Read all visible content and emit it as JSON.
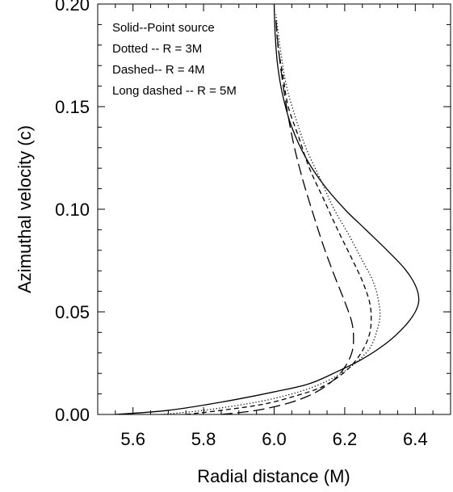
{
  "chart_data": {
    "type": "line",
    "title": "",
    "xlabel": "Radial distance (M)",
    "ylabel": "Azimuthal velocity (c)",
    "xlim": [
      5.5,
      6.5
    ],
    "ylim": [
      0.0,
      0.2
    ],
    "x_ticks": [
      "5.6",
      "5.8",
      "6.0",
      "6.2",
      "6.4"
    ],
    "y_ticks": [
      "0.00",
      "0.05",
      "0.10",
      "0.15",
      "0.20"
    ],
    "grid": false,
    "legend_position": "top-left",
    "legend": [
      "Solid--Point source",
      "Dotted -- R = 3M",
      "Dashed-- R = 4M",
      "Long dashed -- R = 5M"
    ],
    "series": [
      {
        "style": "solid",
        "points": [
          [
            5.55,
            0.0
          ],
          [
            5.7,
            0.002
          ],
          [
            5.85,
            0.006
          ],
          [
            6.0,
            0.011
          ],
          [
            6.1,
            0.015
          ],
          [
            6.18,
            0.021
          ],
          [
            6.25,
            0.027
          ],
          [
            6.32,
            0.035
          ],
          [
            6.37,
            0.043
          ],
          [
            6.4,
            0.05
          ],
          [
            6.41,
            0.056
          ],
          [
            6.4,
            0.063
          ],
          [
            6.37,
            0.071
          ],
          [
            6.32,
            0.08
          ],
          [
            6.26,
            0.09
          ],
          [
            6.2,
            0.1
          ],
          [
            6.14,
            0.112
          ],
          [
            6.09,
            0.125
          ],
          [
            6.05,
            0.14
          ],
          [
            6.025,
            0.155
          ],
          [
            6.01,
            0.17
          ],
          [
            6.003,
            0.185
          ],
          [
            6.0,
            0.2
          ]
        ]
      },
      {
        "style": "dotted",
        "points": [
          [
            5.68,
            0.0
          ],
          [
            5.8,
            0.002
          ],
          [
            5.95,
            0.006
          ],
          [
            6.05,
            0.01
          ],
          [
            6.12,
            0.014
          ],
          [
            6.18,
            0.019
          ],
          [
            6.23,
            0.025
          ],
          [
            6.27,
            0.032
          ],
          [
            6.29,
            0.04
          ],
          [
            6.3,
            0.048
          ],
          [
            6.295,
            0.056
          ],
          [
            6.28,
            0.065
          ],
          [
            6.25,
            0.075
          ],
          [
            6.21,
            0.088
          ],
          [
            6.17,
            0.1
          ],
          [
            6.13,
            0.115
          ],
          [
            6.09,
            0.13
          ],
          [
            6.06,
            0.145
          ],
          [
            6.035,
            0.16
          ],
          [
            6.02,
            0.175
          ],
          [
            6.01,
            0.188
          ],
          [
            6.005,
            0.195
          ]
        ]
      },
      {
        "style": "dashed",
        "points": [
          [
            5.75,
            0.0
          ],
          [
            5.85,
            0.002
          ],
          [
            5.97,
            0.005
          ],
          [
            6.06,
            0.009
          ],
          [
            6.13,
            0.013
          ],
          [
            6.18,
            0.018
          ],
          [
            6.22,
            0.024
          ],
          [
            6.25,
            0.031
          ],
          [
            6.27,
            0.039
          ],
          [
            6.275,
            0.047
          ],
          [
            6.27,
            0.055
          ],
          [
            6.25,
            0.065
          ],
          [
            6.22,
            0.076
          ],
          [
            6.18,
            0.09
          ],
          [
            6.14,
            0.105
          ],
          [
            6.1,
            0.12
          ],
          [
            6.07,
            0.135
          ],
          [
            6.04,
            0.15
          ],
          [
            6.025,
            0.165
          ],
          [
            6.012,
            0.178
          ],
          [
            6.006,
            0.19
          ]
        ]
      },
      {
        "style": "longdash",
        "points": [
          [
            5.85,
            0.0
          ],
          [
            5.95,
            0.002
          ],
          [
            6.05,
            0.006
          ],
          [
            6.12,
            0.011
          ],
          [
            6.17,
            0.017
          ],
          [
            6.2,
            0.023
          ],
          [
            6.22,
            0.03
          ],
          [
            6.225,
            0.037
          ],
          [
            6.22,
            0.045
          ],
          [
            6.2,
            0.055
          ],
          [
            6.17,
            0.068
          ],
          [
            6.14,
            0.082
          ],
          [
            6.11,
            0.098
          ],
          [
            6.08,
            0.115
          ],
          [
            6.055,
            0.132
          ],
          [
            6.035,
            0.15
          ],
          [
            6.02,
            0.167
          ],
          [
            6.01,
            0.182
          ],
          [
            6.005,
            0.193
          ]
        ]
      }
    ]
  }
}
